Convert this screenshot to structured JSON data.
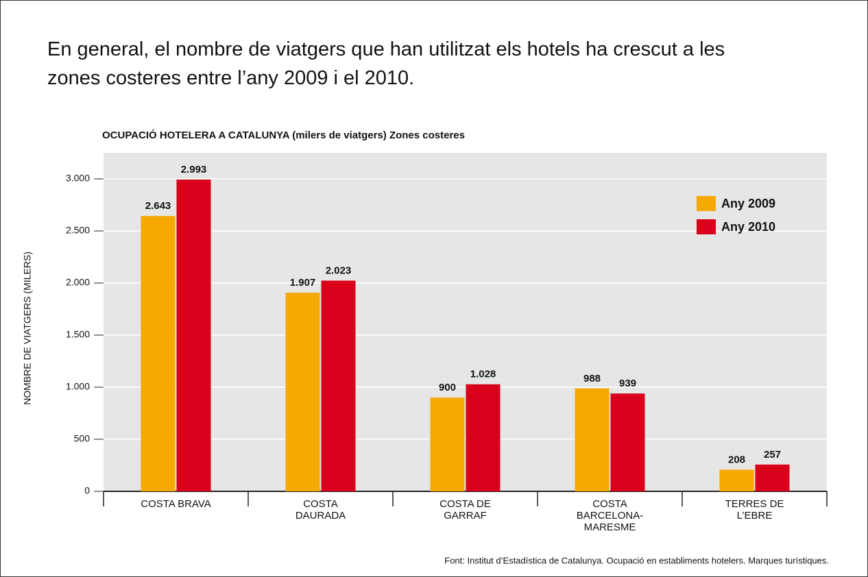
{
  "heading": "En general, el nombre de viatgers que han utilitzat els hotels ha crescut a les\nzones costeres entre l’any 2009 i el 2010.",
  "chart_data": {
    "type": "bar",
    "title": "OCUPACIÓ HOTELERA A CATALUNYA (milers de viatgers) Zones costeres",
    "y_label": "NOMBRE DE VIATGERS (MILERS)",
    "categories": [
      "COSTA BRAVA",
      "COSTA\nDAURADA",
      "COSTA DE\nGARRAF",
      "COSTA\nBARCELONA-\nMARESME",
      "TERRES DE\nL’EBRE"
    ],
    "series": [
      {
        "name": "Any 2009",
        "color": "#f5a800",
        "values": [
          2643,
          1907,
          900,
          988,
          208
        ],
        "value_labels": [
          "2.643",
          "1.907",
          "900",
          "988",
          "208"
        ]
      },
      {
        "name": "Any 2010",
        "color": "#d9001b",
        "values": [
          2993,
          2023,
          1028,
          939,
          257
        ],
        "value_labels": [
          "2.993",
          "2.023",
          "1.028",
          "939",
          "257"
        ]
      }
    ],
    "ylim": [
      0,
      3250
    ],
    "yticks": [
      0,
      500,
      {
        "value": 1000,
        "label": "1.000"
      },
      {
        "value": 1500,
        "label": "1.500"
      },
      {
        "value": 2000,
        "label": "2.000"
      },
      {
        "value": 2500,
        "label": "2.500"
      },
      {
        "value": 3000,
        "label": "3.000"
      }
    ],
    "grid": true,
    "legend": "upper right",
    "source": "Font: Institut d’Estadística de Catalunya. Ocupació en establiments hotelers. Marques turístiques."
  }
}
